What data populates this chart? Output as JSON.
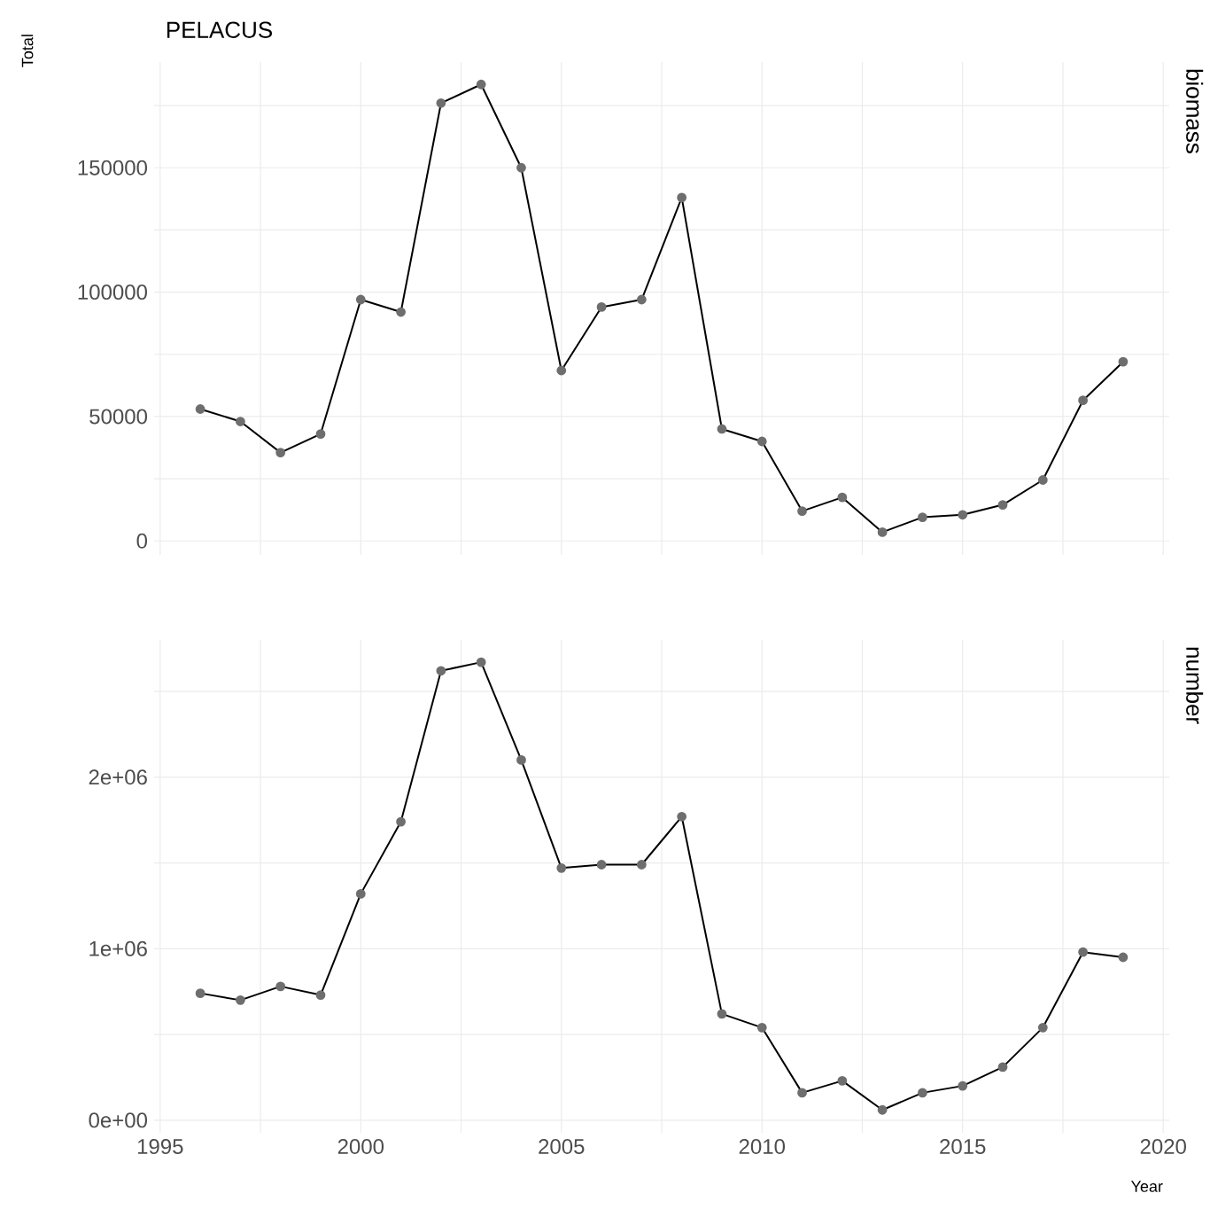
{
  "chart_data": [
    {
      "type": "line",
      "title": "PELACUS",
      "ylabel": "Total",
      "annotations": [
        "biomass"
      ],
      "x": [
        1996,
        1997,
        1998,
        1999,
        2000,
        2001,
        2002,
        2003,
        2004,
        2005,
        2006,
        2007,
        2008,
        2009,
        2010,
        2011,
        2012,
        2013,
        2014,
        2015,
        2016,
        2017,
        2018,
        2019
      ],
      "series": [
        {
          "color": "#000000",
          "values": [
            53000,
            48000,
            35500,
            43000,
            97000,
            92000,
            176000,
            183500,
            150000,
            68500,
            94000,
            97000,
            138000,
            45000,
            40000,
            12000,
            17500,
            3500,
            9500,
            10500,
            14500,
            24500,
            56500,
            72000
          ]
        }
      ],
      "xlim": [
        1994.85,
        2020.15
      ],
      "ylim": [
        -5600,
        192500
      ],
      "xticks": [
        1995,
        {
          "value": 1997.5,
          "label": null
        },
        2000,
        {
          "value": 2002.5,
          "label": null
        },
        2005,
        {
          "value": 2007.5,
          "label": null
        },
        2010,
        {
          "value": 2012.5,
          "label": null
        },
        2015,
        {
          "value": 2017.5,
          "label": null
        },
        2020
      ],
      "yticks": [
        0,
        {
          "value": 25000,
          "label": null
        },
        50000,
        {
          "value": 75000,
          "label": null
        },
        100000,
        {
          "value": 125000,
          "label": null
        },
        150000,
        {
          "value": 175000,
          "label": null
        }
      ],
      "grid": true,
      "marker": "circle",
      "line_style": "solid",
      "tick_labels": "y"
    },
    {
      "type": "line",
      "xlabel": "Year",
      "annotations": [
        "number"
      ],
      "x": [
        1996,
        1997,
        1998,
        1999,
        2000,
        2001,
        2002,
        2003,
        2004,
        2005,
        2006,
        2007,
        2008,
        2009,
        2010,
        2011,
        2012,
        2013,
        2014,
        2015,
        2016,
        2017,
        2018,
        2019
      ],
      "series": [
        {
          "color": "#000000",
          "values": [
            740000,
            700000,
            780000,
            730000,
            1320000,
            1740000,
            2620000,
            2670000,
            2100000,
            1470000,
            1490000,
            1490000,
            1770000,
            620000,
            540000,
            160000,
            230000,
            60000,
            160000,
            200000,
            310000,
            540000,
            980000,
            950000
          ]
        }
      ],
      "xlim": [
        1994.85,
        2020.15
      ],
      "ylim": [
        -73000,
        2800000
      ],
      "xticks": [
        1995,
        {
          "value": 1997.5,
          "label": null
        },
        2000,
        {
          "value": 2002.5,
          "label": null
        },
        2005,
        {
          "value": 2007.5,
          "label": null
        },
        2010,
        {
          "value": 2012.5,
          "label": null
        },
        2015,
        {
          "value": 2017.5,
          "label": null
        },
        2020
      ],
      "yticks": [
        {
          "value": 0,
          "label": "0e+00"
        },
        {
          "value": 500000,
          "label": null
        },
        {
          "value": 1000000,
          "label": "1e+06"
        },
        {
          "value": 1500000,
          "label": null
        },
        {
          "value": 2000000,
          "label": "2e+06"
        },
        {
          "value": 2500000,
          "label": null
        }
      ],
      "grid": true,
      "marker": "circle",
      "line_style": "solid"
    }
  ]
}
